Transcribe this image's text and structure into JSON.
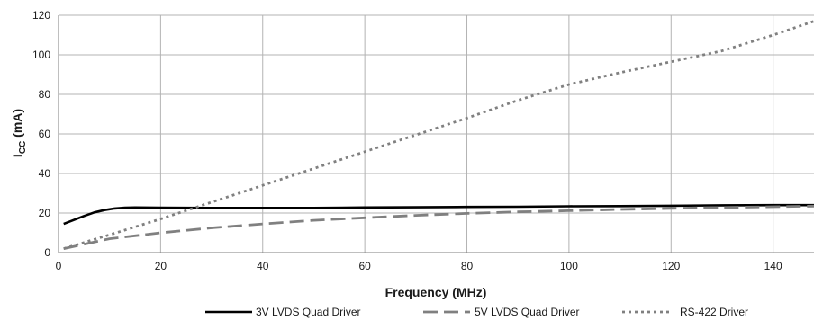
{
  "chart_data": {
    "type": "line",
    "title": "",
    "xlabel": "Frequency (MHz)",
    "ylabel_main": "I",
    "ylabel_sub": "CC",
    "ylabel_unit": " (mA)",
    "xlim": [
      0,
      148
    ],
    "ylim": [
      0,
      120
    ],
    "xticks": [
      0,
      20,
      40,
      60,
      80,
      100,
      120,
      140
    ],
    "yticks": [
      0,
      20,
      40,
      60,
      80,
      100,
      120
    ],
    "grid": true,
    "legend_position": "bottom",
    "series": [
      {
        "name": "3V LVDS Quad Driver",
        "color": "#000000",
        "style": "solid",
        "x": [
          1,
          3,
          5,
          7,
          9,
          11,
          13,
          15,
          20,
          30,
          40,
          50,
          60,
          70,
          80,
          90,
          100,
          110,
          120,
          130,
          140,
          148
        ],
        "y": [
          14.5,
          16.5,
          18.5,
          20.3,
          21.5,
          22.3,
          22.7,
          22.8,
          22.7,
          22.6,
          22.6,
          22.6,
          22.8,
          22.9,
          23.1,
          23.2,
          23.4,
          23.5,
          23.7,
          23.9,
          24.0,
          24.0
        ]
      },
      {
        "name": "5V LVDS Quad Driver",
        "color": "#808080",
        "style": "dashed",
        "x": [
          1,
          10,
          20,
          30,
          40,
          50,
          60,
          70,
          80,
          90,
          100,
          110,
          120,
          130,
          140,
          148
        ],
        "y": [
          2.0,
          7.0,
          10.0,
          12.5,
          14.5,
          16.3,
          17.6,
          18.8,
          19.8,
          20.6,
          21.2,
          21.8,
          22.3,
          22.8,
          23.2,
          23.5
        ]
      },
      {
        "name": "RS-422 Driver",
        "color": "#808080",
        "style": "dotted",
        "x": [
          1,
          10,
          20,
          30,
          40,
          50,
          60,
          70,
          80,
          90,
          100,
          110,
          120,
          130,
          140,
          148
        ],
        "y": [
          2.0,
          9.0,
          17.0,
          25.5,
          34.0,
          42.5,
          51.0,
          59.5,
          68.0,
          77.0,
          85.0,
          91.0,
          96.5,
          102.0,
          110.0,
          117.0
        ]
      }
    ]
  }
}
